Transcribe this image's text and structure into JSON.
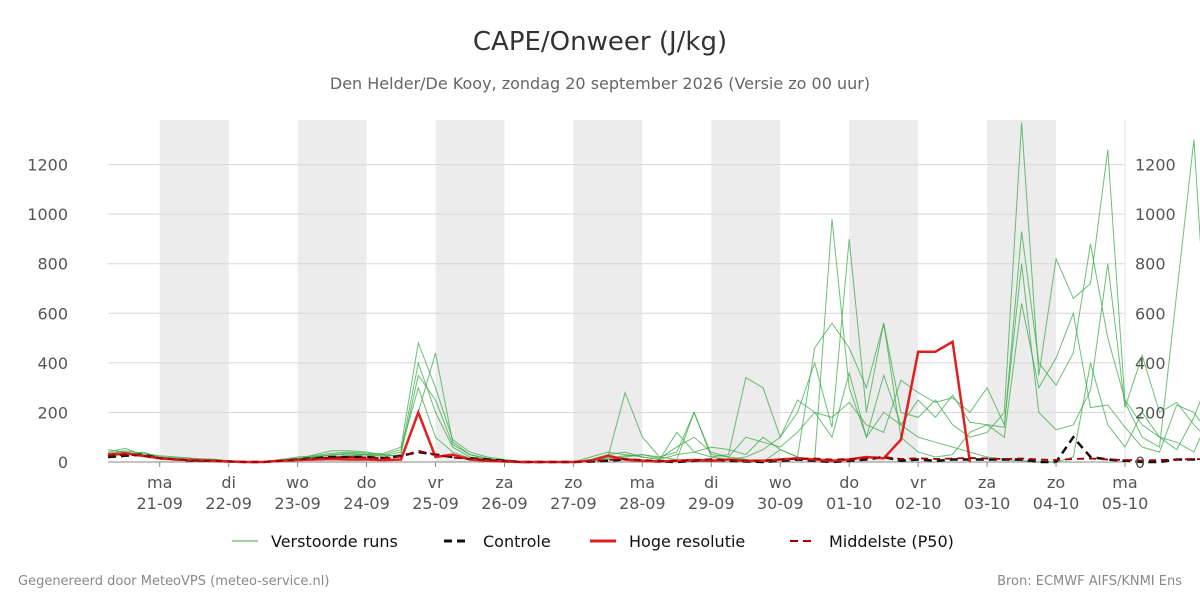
{
  "chart_data": {
    "type": "line",
    "title": "CAPE/Onweer (J/kg)",
    "subtitle": "Den Helder/De Kooy, zondag 20 september 2026 (Versie zo 00 uur)",
    "ylim": [
      0,
      1380
    ],
    "yticks": [
      0,
      200,
      400,
      600,
      800,
      1000,
      1200
    ],
    "xlim": [
      -0.75,
      14
    ],
    "x_ticks": [
      {
        "x": 0,
        "day": "ma",
        "date": "21-09"
      },
      {
        "x": 1,
        "day": "di",
        "date": "22-09"
      },
      {
        "x": 2,
        "day": "wo",
        "date": "23-09"
      },
      {
        "x": 3,
        "day": "do",
        "date": "24-09"
      },
      {
        "x": 4,
        "day": "vr",
        "date": "25-09"
      },
      {
        "x": 5,
        "day": "za",
        "date": "26-09"
      },
      {
        "x": 6,
        "day": "zo",
        "date": "27-09"
      },
      {
        "x": 7,
        "day": "ma",
        "date": "28-09"
      },
      {
        "x": 8,
        "day": "di",
        "date": "29-09"
      },
      {
        "x": 9,
        "day": "wo",
        "date": "30-09"
      },
      {
        "x": 10,
        "day": "do",
        "date": "01-10"
      },
      {
        "x": 11,
        "day": "vr",
        "date": "02-10"
      },
      {
        "x": 12,
        "day": "za",
        "date": "03-10"
      },
      {
        "x": 13,
        "day": "zo",
        "date": "04-10"
      },
      {
        "x": 14,
        "day": "ma",
        "date": "05-10"
      }
    ],
    "shaded_days": [
      [
        0,
        1
      ],
      [
        2,
        3
      ],
      [
        4,
        5
      ],
      [
        6,
        7
      ],
      [
        8,
        9
      ],
      [
        10,
        11
      ],
      [
        12,
        13
      ]
    ],
    "x_step": 0.25,
    "x_start": -0.75,
    "series": [
      {
        "name": "Verstoorde runs",
        "style": "ensemble",
        "color": "#3aaa45",
        "values_list": [
          [
            40,
            55,
            30,
            20,
            15,
            10,
            12,
            5,
            0,
            0,
            5,
            15,
            20,
            30,
            35,
            30,
            25,
            40,
            400,
            200,
            60,
            20,
            10,
            5,
            0,
            0,
            0,
            0,
            5,
            10,
            20,
            30,
            20,
            40,
            200,
            30,
            20,
            10,
            0,
            50,
            20,
            10,
            980,
            300,
            100,
            200,
            150,
            100,
            80,
            60,
            40,
            20,
            10,
            5,
            0,
            0,
            20,
            400,
            150,
            60,
            200,
            100,
            80,
            40,
            200,
            100,
            60,
            20,
            10,
            5,
            0,
            0
          ],
          [
            30,
            40,
            25,
            15,
            10,
            8,
            5,
            3,
            0,
            0,
            10,
            20,
            25,
            35,
            40,
            35,
            30,
            50,
            300,
            100,
            40,
            15,
            5,
            0,
            0,
            0,
            0,
            0,
            10,
            30,
            40,
            20,
            10,
            30,
            40,
            60,
            50,
            30,
            100,
            50,
            20,
            460,
            560,
            460,
            300,
            560,
            100,
            40,
            20,
            30,
            120,
            150,
            100,
            640,
            300,
            420,
            600,
            220,
            230,
            140,
            60,
            40,
            230,
            200,
            100,
            300,
            250,
            100,
            80,
            120,
            60,
            40,
            100,
            520,
            520,
            340,
            380,
            60,
            40,
            200,
            580,
            60
          ],
          [
            20,
            30,
            40,
            20,
            10,
            5,
            5,
            2,
            0,
            0,
            5,
            10,
            30,
            45,
            45,
            40,
            30,
            20,
            200,
            440,
            80,
            30,
            15,
            5,
            0,
            0,
            0,
            0,
            20,
            40,
            30,
            20,
            10,
            120,
            40,
            20,
            10,
            20,
            50,
            100,
            200,
            400,
            140,
            900,
            200,
            560,
            200,
            180,
            250,
            150,
            100,
            120,
            200,
            1370,
            350,
            820,
            660,
            720,
            1260,
            240,
            100,
            60,
            680,
            1300,
            200,
            100,
            250,
            100,
            780,
            60,
            200,
            200,
            100,
            20,
            60,
            100,
            200,
            40,
            60,
            80,
            200,
            60,
            450
          ],
          [
            50,
            40,
            30,
            20,
            15,
            10,
            8,
            4,
            0,
            0,
            8,
            12,
            18,
            20,
            25,
            30,
            35,
            60,
            480,
            300,
            90,
            40,
            20,
            10,
            0,
            0,
            0,
            0,
            10,
            20,
            280,
            100,
            20,
            10,
            200,
            20,
            30,
            340,
            300,
            100,
            250,
            200,
            100,
            360,
            100,
            350,
            150,
            250,
            180,
            270,
            160,
            150,
            140,
            930,
            400,
            310,
            440,
            880,
            500,
            250,
            150,
            100,
            50,
            180,
            360,
            250,
            100,
            200,
            700,
            450,
            200,
            140,
            120,
            100,
            60,
            40,
            400,
            380,
            100,
            600,
            100,
            60
          ],
          [
            35,
            45,
            35,
            25,
            20,
            15,
            10,
            5,
            0,
            0,
            6,
            14,
            22,
            28,
            32,
            28,
            22,
            30,
            350,
            250,
            70,
            30,
            12,
            6,
            0,
            0,
            0,
            0,
            5,
            15,
            25,
            30,
            15,
            60,
            100,
            40,
            20,
            100,
            80,
            60,
            120,
            200,
            180,
            240,
            150,
            120,
            330,
            280,
            240,
            260,
            200,
            300,
            150,
            800,
            200,
            130,
            150,
            290,
            800,
            220,
            430,
            200,
            240,
            150,
            80,
            180,
            100,
            60,
            160,
            100,
            140,
            100,
            60,
            180,
            160,
            100,
            220,
            60,
            100,
            80,
            40,
            220,
            140
          ]
        ]
      },
      {
        "name": "Controle",
        "style": "dashed",
        "color": "#111111",
        "values": [
          20,
          25,
          30,
          15,
          10,
          5,
          5,
          2,
          0,
          0,
          5,
          10,
          15,
          20,
          20,
          20,
          15,
          25,
          40,
          30,
          20,
          15,
          10,
          5,
          0,
          0,
          0,
          0,
          2,
          5,
          10,
          5,
          2,
          0,
          5,
          10,
          5,
          2,
          0,
          5,
          10,
          5,
          0,
          5,
          10,
          20,
          5,
          10,
          5,
          10,
          10,
          10,
          10,
          10,
          0,
          0,
          100,
          20,
          10,
          5,
          0,
          0,
          10,
          10,
          5,
          5,
          20,
          20,
          30,
          10,
          5,
          5,
          5,
          5,
          5,
          5,
          5,
          5,
          5,
          5,
          10,
          5,
          5
        ]
      },
      {
        "name": "Hoge resolutie",
        "style": "solid",
        "color": "#e02020",
        "values": [
          30,
          35,
          25,
          15,
          10,
          8,
          5,
          2,
          0,
          0,
          5,
          8,
          10,
          12,
          10,
          10,
          8,
          10,
          200,
          20,
          30,
          10,
          5,
          2,
          0,
          0,
          0,
          0,
          5,
          25,
          10,
          5,
          2,
          5,
          8,
          5,
          10,
          5,
          5,
          10,
          15,
          10,
          5,
          10,
          20,
          15,
          90,
          445,
          445,
          485,
          0
        ]
      },
      {
        "name": "Middelste (P50)",
        "style": "dashed-thin",
        "color": "#a00000",
        "values": [
          25,
          30,
          25,
          15,
          10,
          6,
          5,
          2,
          0,
          0,
          5,
          10,
          14,
          18,
          20,
          18,
          15,
          22,
          45,
          30,
          18,
          12,
          8,
          4,
          0,
          0,
          0,
          0,
          3,
          8,
          12,
          8,
          5,
          5,
          8,
          10,
          8,
          6,
          5,
          10,
          12,
          14,
          10,
          12,
          15,
          20,
          12,
          15,
          12,
          14,
          16,
          14,
          12,
          14,
          10,
          8,
          12,
          14,
          10,
          8,
          6,
          8,
          10,
          12,
          10,
          8,
          10,
          12,
          14,
          10,
          8,
          8,
          8,
          10,
          10,
          8,
          10,
          10,
          8,
          8,
          10,
          8,
          8
        ]
      }
    ]
  },
  "legend": {
    "ensemble_label": "Verstoorde runs",
    "control_label": "Controle",
    "hires_label": "Hoge resolutie",
    "p50_label": "Middelste (P50)"
  },
  "footer": {
    "left": "Gegenereerd door MeteoVPS (meteo-service.nl)",
    "right": "Bron: ECMWF AIFS/KNMI Ens"
  }
}
